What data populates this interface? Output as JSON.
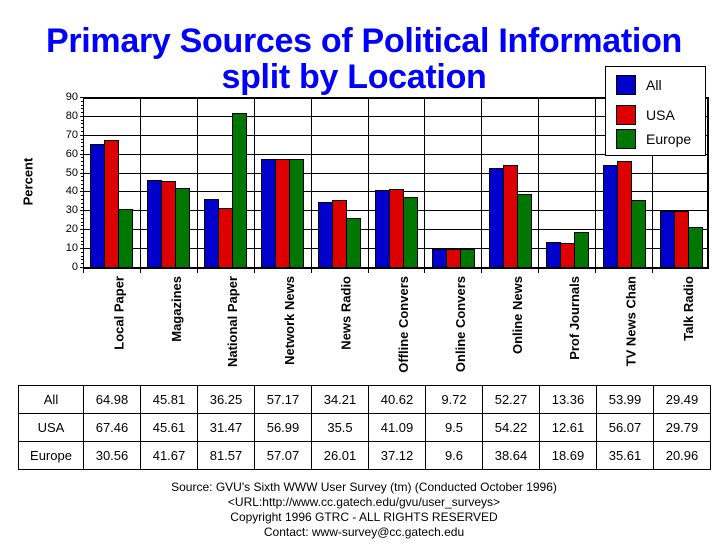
{
  "title_line1": "Primary Sources of Political Information",
  "title_line2": "split by Location",
  "legend": [
    {
      "label": "All",
      "color": "#0000cc"
    },
    {
      "label": "USA",
      "color": "#dd0000"
    },
    {
      "label": "Europe",
      "color": "#007700"
    }
  ],
  "footer": {
    "source": "Source: GVU's Sixth WWW User Survey (tm) (Conducted October 1996)",
    "url": "<URL:http://www.cc.gatech.edu/gvu/user_surveys>",
    "copyright": "Copyright 1996 GTRC - ALL RIGHTS RESERVED",
    "contact": "Contact: www-survey@cc.gatech.edu"
  },
  "table": {
    "row_headers": [
      "All",
      "USA",
      "Europe"
    ]
  },
  "chart_data": {
    "type": "bar",
    "title": "Primary Sources of Political Information split by Location",
    "xlabel": "",
    "ylabel": "Percent",
    "ylim": [
      0,
      90
    ],
    "yticks": [
      0,
      10,
      20,
      30,
      40,
      50,
      60,
      70,
      80,
      90
    ],
    "grid": true,
    "legend_position": "top-right",
    "categories": [
      "Local Paper",
      "Magazines",
      "National Paper",
      "Network News",
      "News Radio",
      "Offline Convers",
      "Online Convers",
      "Online News",
      "Prof Journals",
      "TV News Chan",
      "Talk Radio"
    ],
    "series": [
      {
        "name": "All",
        "color": "#0000cc",
        "values": [
          64.98,
          45.81,
          36.25,
          57.17,
          34.21,
          40.62,
          9.72,
          52.27,
          13.36,
          53.99,
          29.49
        ]
      },
      {
        "name": "USA",
        "color": "#dd0000",
        "values": [
          67.46,
          45.61,
          31.47,
          56.99,
          35.5,
          41.09,
          9.5,
          54.22,
          12.61,
          56.07,
          29.79
        ]
      },
      {
        "name": "Europe",
        "color": "#007700",
        "values": [
          30.56,
          41.67,
          81.57,
          57.07,
          26.01,
          37.12,
          9.6,
          38.64,
          18.69,
          35.61,
          20.96
        ]
      }
    ]
  }
}
